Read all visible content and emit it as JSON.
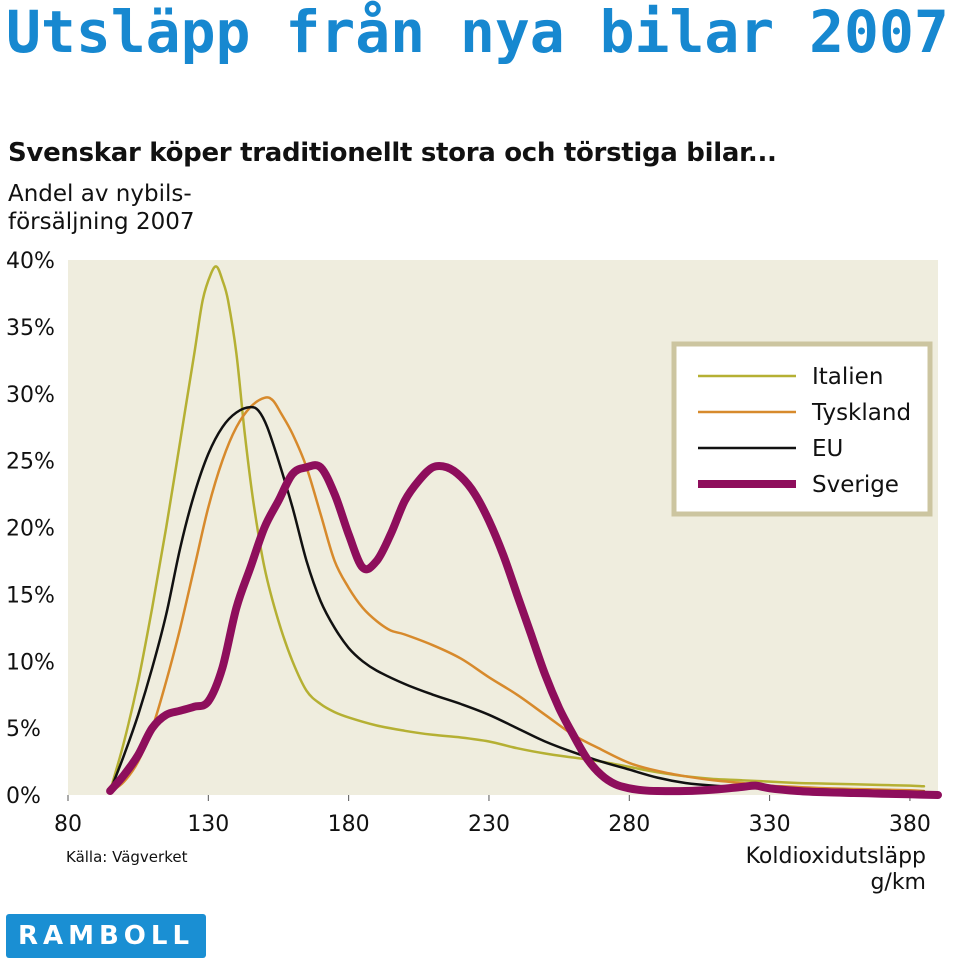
{
  "header": {
    "title": "Utsläpp från nya bilar 2007",
    "subtitle": "Svenskar köper traditionellt stora och törstiga bilar..."
  },
  "logo": {
    "text": "RAMBOLL"
  },
  "chart_data": {
    "type": "line",
    "title": "",
    "ylabel_lines": [
      "Andel av nybils-",
      "försäljning 2007"
    ],
    "xlabel_lines": [
      "Koldioxidutsläpp",
      "g/km"
    ],
    "source": "Källa: Vägverket",
    "xlim": [
      80,
      390
    ],
    "ylim": [
      0,
      40
    ],
    "x_ticks": [
      80,
      130,
      180,
      230,
      280,
      330,
      380
    ],
    "x_tick_labels": [
      "80",
      "130",
      "180",
      "230",
      "280",
      "330",
      "380"
    ],
    "y_ticks": [
      0,
      5,
      10,
      15,
      20,
      25,
      30,
      35,
      40
    ],
    "y_tick_labels": [
      "0%",
      "5%",
      "10%",
      "15%",
      "20%",
      "25%",
      "30%",
      "35%",
      "40%"
    ],
    "grid": false,
    "legend_position": "right",
    "background": "#efedde",
    "series": [
      {
        "name": "Italien",
        "color": "#b5b033",
        "width": 2.5,
        "x": [
          95,
          100,
          105,
          110,
          115,
          120,
          125,
          128,
          131,
          133,
          135,
          137,
          140,
          143,
          146,
          150,
          155,
          160,
          165,
          170,
          175,
          180,
          190,
          200,
          210,
          220,
          230,
          240,
          250,
          260,
          270,
          280,
          290,
          300,
          310,
          320,
          330,
          340,
          350,
          360,
          370,
          380,
          385
        ],
        "y": [
          0.3,
          4,
          8.5,
          14,
          20,
          26.5,
          33,
          37,
          39,
          39.5,
          38.5,
          37,
          33,
          27,
          22,
          17,
          13,
          10,
          7.8,
          6.8,
          6.2,
          5.8,
          5.2,
          4.8,
          4.5,
          4.3,
          4.0,
          3.5,
          3.1,
          2.8,
          2.5,
          2.1,
          1.7,
          1.4,
          1.2,
          1.1,
          1.0,
          0.9,
          0.85,
          0.8,
          0.75,
          0.7,
          0.65
        ]
      },
      {
        "name": "Tyskland",
        "color": "#d78a2c",
        "width": 2.5,
        "x": [
          95,
          100,
          105,
          110,
          115,
          120,
          125,
          130,
          135,
          140,
          145,
          150,
          153,
          156,
          160,
          165,
          170,
          175,
          180,
          185,
          190,
          195,
          200,
          210,
          220,
          230,
          240,
          250,
          260,
          270,
          280,
          290,
          300,
          310,
          320,
          330,
          340,
          350,
          360,
          370,
          380,
          385
        ],
        "y": [
          0.2,
          1,
          2.5,
          5,
          8.5,
          12.5,
          17,
          21.5,
          25,
          27.5,
          29,
          29.7,
          29.5,
          28.5,
          27,
          24.5,
          21,
          17.5,
          15.5,
          14,
          13,
          12.3,
          12,
          11.2,
          10.2,
          8.8,
          7.5,
          6.0,
          4.5,
          3.4,
          2.4,
          1.8,
          1.4,
          1.1,
          0.9,
          0.7,
          0.6,
          0.5,
          0.45,
          0.4,
          0.35,
          0.3
        ]
      },
      {
        "name": "EU",
        "color": "#111111",
        "width": 2.5,
        "x": [
          95,
          100,
          105,
          110,
          115,
          120,
          125,
          130,
          135,
          140,
          145,
          148,
          151,
          155,
          160,
          165,
          170,
          175,
          180,
          185,
          190,
          200,
          210,
          220,
          230,
          240,
          250,
          260,
          270,
          280,
          290,
          300,
          310,
          320,
          330,
          340,
          350,
          360,
          370,
          380,
          385
        ],
        "y": [
          0.3,
          3,
          6,
          9.5,
          13.5,
          18.5,
          22.5,
          25.5,
          27.5,
          28.6,
          29,
          28.7,
          27.5,
          25,
          21.5,
          17.5,
          14.5,
          12.5,
          11,
          10,
          9.3,
          8.3,
          7.5,
          6.8,
          6.0,
          5.0,
          4.0,
          3.2,
          2.5,
          1.9,
          1.3,
          0.9,
          0.7,
          0.6,
          0.5,
          0.45,
          0.4,
          0.35,
          0.3,
          0.25,
          0.25
        ]
      },
      {
        "name": "Sverige",
        "color": "#8e0e5c",
        "width": 8,
        "x": [
          95,
          100,
          105,
          110,
          115,
          120,
          125,
          130,
          135,
          140,
          145,
          150,
          155,
          160,
          165,
          170,
          175,
          180,
          185,
          190,
          195,
          200,
          205,
          210,
          215,
          220,
          225,
          230,
          235,
          240,
          245,
          250,
          255,
          260,
          265,
          270,
          275,
          280,
          285,
          290,
          300,
          310,
          320,
          325,
          330,
          340,
          350,
          360,
          370,
          380,
          390
        ],
        "y": [
          0.3,
          1.5,
          3,
          5,
          6,
          6.3,
          6.6,
          7.0,
          9.5,
          14,
          17,
          20,
          22,
          24,
          24.5,
          24.5,
          22.5,
          19.5,
          17,
          17.5,
          19.5,
          22,
          23.5,
          24.5,
          24.5,
          23.8,
          22.5,
          20.5,
          18,
          15,
          12,
          9,
          6.5,
          4.5,
          2.7,
          1.5,
          0.8,
          0.5,
          0.35,
          0.3,
          0.3,
          0.4,
          0.6,
          0.7,
          0.5,
          0.3,
          0.2,
          0.15,
          0.1,
          0.05,
          0.0
        ]
      }
    ]
  }
}
